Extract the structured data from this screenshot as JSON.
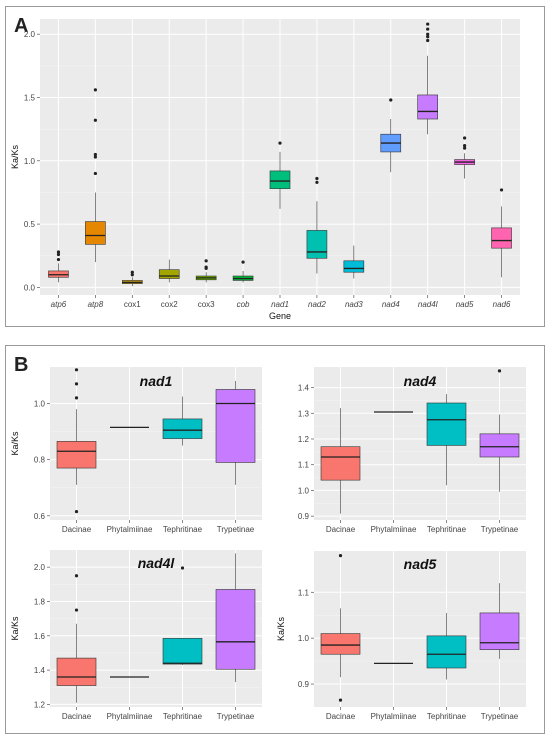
{
  "panels": {
    "a_label": "A",
    "b_label": "B"
  },
  "chart_data": [
    {
      "type": "boxplot",
      "panel": "A",
      "title": "",
      "xlabel": "Gene",
      "ylabel": "Ka/Ks",
      "ylim": [
        -0.06,
        2.12
      ],
      "yticks": [
        0.0,
        0.5,
        1.0,
        1.5,
        2.0
      ],
      "ytick_labels": [
        "0.0",
        "0.5",
        "1.0",
        "1.5",
        "2.0"
      ],
      "grid": true,
      "legend": "none",
      "boxes": [
        {
          "category": "atp6",
          "italic": true,
          "color": "#F8766D",
          "min": 0.04,
          "q1": 0.08,
          "median": 0.1,
          "q3": 0.13,
          "max": 0.19,
          "outliers": [
            0.22,
            0.26,
            0.28
          ]
        },
        {
          "category": "atp8",
          "italic": true,
          "color": "#E58700",
          "min": 0.2,
          "q1": 0.34,
          "median": 0.41,
          "q3": 0.52,
          "max": 0.75,
          "outliers": [
            0.9,
            1.03,
            1.05,
            1.32,
            1.56
          ]
        },
        {
          "category": "cox1",
          "italic": false,
          "color": "#C99800",
          "min": 0.01,
          "q1": 0.03,
          "median": 0.04,
          "q3": 0.055,
          "max": 0.08,
          "outliers": [
            0.1,
            0.12
          ]
        },
        {
          "category": "cox2",
          "italic": false,
          "color": "#A3A500",
          "min": 0.04,
          "q1": 0.07,
          "median": 0.09,
          "q3": 0.14,
          "max": 0.22,
          "outliers": []
        },
        {
          "category": "cox3",
          "italic": false,
          "color": "#6BB100",
          "min": 0.04,
          "q1": 0.06,
          "median": 0.075,
          "q3": 0.09,
          "max": 0.12,
          "outliers": [
            0.15,
            0.16,
            0.21
          ]
        },
        {
          "category": "cob",
          "italic": true,
          "color": "#00BA38",
          "min": 0.04,
          "q1": 0.055,
          "median": 0.07,
          "q3": 0.09,
          "max": 0.13,
          "outliers": [
            0.2
          ]
        },
        {
          "category": "nad1",
          "italic": true,
          "color": "#00BF7D",
          "min": 0.62,
          "q1": 0.78,
          "median": 0.84,
          "q3": 0.92,
          "max": 1.07,
          "outliers": [
            1.14
          ]
        },
        {
          "category": "nad2",
          "italic": true,
          "color": "#00C0AF",
          "min": 0.11,
          "q1": 0.23,
          "median": 0.28,
          "q3": 0.45,
          "max": 0.68,
          "outliers": [
            0.83,
            0.86
          ]
        },
        {
          "category": "nad3",
          "italic": true,
          "color": "#00BCD8",
          "min": 0.07,
          "q1": 0.12,
          "median": 0.15,
          "q3": 0.21,
          "max": 0.33,
          "outliers": []
        },
        {
          "category": "nad4",
          "italic": true,
          "color": "#619CFF",
          "min": 0.91,
          "q1": 1.07,
          "median": 1.14,
          "q3": 1.21,
          "max": 1.33,
          "outliers": [
            1.48
          ]
        },
        {
          "category": "nad4l",
          "italic": true,
          "color": "#C77CFF",
          "min": 1.21,
          "q1": 1.33,
          "median": 1.39,
          "q3": 1.52,
          "max": 1.83,
          "outliers": [
            1.95,
            1.98,
            2.0,
            2.04,
            2.08
          ]
        },
        {
          "category": "nad5",
          "italic": true,
          "color": "#F564E3",
          "min": 0.86,
          "q1": 0.97,
          "median": 0.99,
          "q3": 1.01,
          "max": 1.06,
          "outliers": [
            1.1,
            1.12,
            1.18
          ]
        },
        {
          "category": "nad6",
          "italic": true,
          "color": "#FF64B0",
          "min": 0.08,
          "q1": 0.31,
          "median": 0.37,
          "q3": 0.47,
          "max": 0.64,
          "outliers": [
            0.77
          ]
        }
      ]
    },
    {
      "type": "boxplot",
      "panel": "B",
      "title": "nad1",
      "xlabel": "",
      "ylabel": "Ka/Ks",
      "ylim": [
        0.585,
        1.13
      ],
      "yticks": [
        0.6,
        0.8,
        1.0
      ],
      "ytick_labels": [
        "0.6",
        "0.8",
        "1.0"
      ],
      "grid": true,
      "boxes": [
        {
          "category": "Dacinae",
          "color": "#F8766D",
          "min": 0.71,
          "q1": 0.77,
          "median": 0.83,
          "q3": 0.865,
          "max": 0.98,
          "outliers": [
            0.615,
            1.02,
            1.07,
            1.12
          ]
        },
        {
          "category": "Phytalmiinae",
          "color": "#7CAE00",
          "min": 0.915,
          "q1": 0.915,
          "median": 0.915,
          "q3": 0.915,
          "max": 0.915,
          "outliers": []
        },
        {
          "category": "Tephritinae",
          "color": "#00BFC4",
          "min": 0.85,
          "q1": 0.875,
          "median": 0.905,
          "q3": 0.945,
          "max": 1.025,
          "outliers": []
        },
        {
          "category": "Trypetinae",
          "color": "#C77CFF",
          "min": 0.71,
          "q1": 0.79,
          "median": 1.0,
          "q3": 1.05,
          "max": 1.08,
          "outliers": []
        }
      ]
    },
    {
      "type": "boxplot",
      "panel": "B",
      "title": "nad4",
      "xlabel": "",
      "ylabel": "",
      "ylim": [
        0.885,
        1.48
      ],
      "yticks": [
        0.9,
        1.0,
        1.1,
        1.2,
        1.3,
        1.4
      ],
      "ytick_labels": [
        "0.9",
        "1.0",
        "1.1",
        "1.2",
        "1.3",
        "1.4"
      ],
      "grid": true,
      "boxes": [
        {
          "category": "Dacinae",
          "color": "#F8766D",
          "min": 0.91,
          "q1": 1.04,
          "median": 1.13,
          "q3": 1.17,
          "max": 1.32,
          "outliers": []
        },
        {
          "category": "Phytalmiinae",
          "color": "#7CAE00",
          "min": 1.305,
          "q1": 1.305,
          "median": 1.305,
          "q3": 1.305,
          "max": 1.305,
          "outliers": []
        },
        {
          "category": "Tephritinae",
          "color": "#00BFC4",
          "min": 1.02,
          "q1": 1.175,
          "median": 1.275,
          "q3": 1.34,
          "max": 1.375,
          "outliers": []
        },
        {
          "category": "Trypetinae",
          "color": "#C77CFF",
          "min": 0.995,
          "q1": 1.13,
          "median": 1.17,
          "q3": 1.22,
          "max": 1.295,
          "outliers": [
            1.465
          ]
        }
      ]
    },
    {
      "type": "boxplot",
      "panel": "B",
      "title": "nad4l",
      "xlabel": "",
      "ylabel": "Ka/Ks",
      "ylim": [
        1.185,
        2.1
      ],
      "yticks": [
        1.2,
        1.4,
        1.6,
        1.8,
        2.0
      ],
      "ytick_labels": [
        "1.2",
        "1.4",
        "1.6",
        "1.8",
        "2.0"
      ],
      "grid": true,
      "boxes": [
        {
          "category": "Dacinae",
          "color": "#F8766D",
          "min": 1.21,
          "q1": 1.31,
          "median": 1.36,
          "q3": 1.47,
          "max": 1.67,
          "outliers": [
            1.75,
            1.95
          ]
        },
        {
          "category": "Phytalmiinae",
          "color": "#7CAE00",
          "min": 1.36,
          "q1": 1.36,
          "median": 1.36,
          "q3": 1.36,
          "max": 1.36,
          "outliers": []
        },
        {
          "category": "Tephritinae",
          "color": "#00BFC4",
          "min": 1.43,
          "q1": 1.435,
          "median": 1.44,
          "q3": 1.585,
          "max": 1.585,
          "outliers": [
            1.995
          ]
        },
        {
          "category": "Trypetinae",
          "color": "#C77CFF",
          "min": 1.33,
          "q1": 1.405,
          "median": 1.565,
          "q3": 1.87,
          "max": 2.08,
          "outliers": []
        }
      ]
    },
    {
      "type": "boxplot",
      "panel": "B",
      "title": "nad5",
      "xlabel": "",
      "ylabel": "Ka/Ks",
      "ylim": [
        0.85,
        1.19
      ],
      "yticks": [
        0.9,
        1.0,
        1.1
      ],
      "ytick_labels": [
        "0.9",
        "1.0",
        "1.1"
      ],
      "grid": true,
      "boxes": [
        {
          "category": "Dacinae",
          "color": "#F8766D",
          "min": 0.915,
          "q1": 0.965,
          "median": 0.985,
          "q3": 1.01,
          "max": 1.065,
          "outliers": [
            0.865,
            1.18
          ]
        },
        {
          "category": "Phytalmiinae",
          "color": "#7CAE00",
          "min": 0.945,
          "q1": 0.945,
          "median": 0.945,
          "q3": 0.945,
          "max": 0.945,
          "outliers": []
        },
        {
          "category": "Tephritinae",
          "color": "#00BFC4",
          "min": 0.91,
          "q1": 0.935,
          "median": 0.965,
          "q3": 1.005,
          "max": 1.055,
          "outliers": []
        },
        {
          "category": "Trypetinae",
          "color": "#C77CFF",
          "min": 0.955,
          "q1": 0.975,
          "median": 0.99,
          "q3": 1.055,
          "max": 1.12,
          "outliers": []
        }
      ]
    }
  ]
}
